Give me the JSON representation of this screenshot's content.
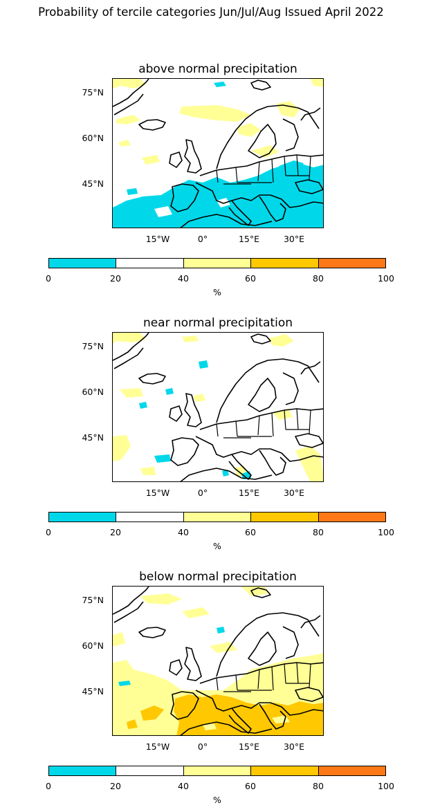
{
  "title": "Probability of tercile categories Jun/Jul/Aug Issued April 2022",
  "lat_labels": [
    "75°N",
    "60°N",
    "45°N"
  ],
  "lon_labels": [
    "15°W",
    "0°",
    "15°E",
    "30°E"
  ],
  "colorbar": {
    "ticks": [
      "0",
      "20",
      "40",
      "60",
      "80",
      "100"
    ],
    "unit": "%",
    "colors": [
      "#00d8ea",
      "#ffffff",
      "#ffff96",
      "#ffc800",
      "#ff7818"
    ]
  },
  "panels": [
    {
      "title": "above normal precipitation",
      "dominant_category": "0-20 % (south)"
    },
    {
      "title": "near normal precipitation",
      "dominant_category": "20-40 %"
    },
    {
      "title": "below normal precipitation",
      "dominant_category": "40-60 % / 60-80 % (south)"
    }
  ]
}
